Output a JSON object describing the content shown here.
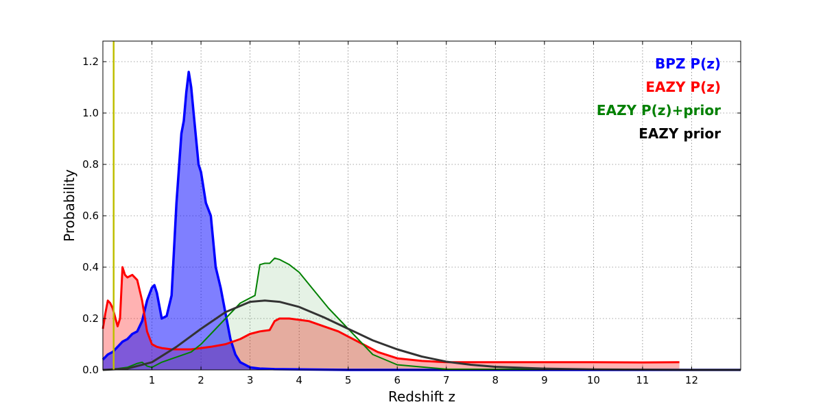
{
  "chart_data": {
    "type": "area",
    "title": "",
    "xlabel": "Redshift z",
    "ylabel": "Probability",
    "xlim": [
      0,
      13
    ],
    "ylim": [
      0,
      1.28
    ],
    "grid": true,
    "legend_placement": "top-right",
    "x_ticks": [
      1,
      2,
      3,
      4,
      5,
      6,
      7,
      8,
      9,
      10,
      11,
      12
    ],
    "x_tick_labels": [
      "1",
      "2",
      "3",
      "4",
      "5",
      "6",
      "7",
      "8",
      "9",
      "10",
      "11",
      "12"
    ],
    "y_ticks": [
      0.0,
      0.2,
      0.4,
      0.6,
      0.8,
      1.0,
      1.2
    ],
    "y_tick_labels": [
      "0.0",
      "0.2",
      "0.4",
      "0.6",
      "0.8",
      "1.0",
      "1.2"
    ],
    "vline": {
      "x": 0.22,
      "color": "#bfbf00"
    },
    "series": [
      {
        "name": "BPZ P(z)",
        "color": "#0000ff",
        "fill": "#0000ff",
        "fill_opacity": 0.5,
        "x": [
          0,
          0.1,
          0.2,
          0.3,
          0.4,
          0.5,
          0.6,
          0.7,
          0.8,
          0.9,
          1.0,
          1.05,
          1.1,
          1.15,
          1.2,
          1.3,
          1.4,
          1.5,
          1.6,
          1.65,
          1.7,
          1.75,
          1.8,
          1.85,
          1.9,
          1.95,
          2.0,
          2.1,
          2.2,
          2.3,
          2.4,
          2.5,
          2.6,
          2.7,
          2.8,
          2.9,
          3.0,
          3.2,
          3.5,
          4.0,
          5.0,
          13.0
        ],
        "y": [
          0.04,
          0.06,
          0.07,
          0.09,
          0.11,
          0.12,
          0.14,
          0.15,
          0.19,
          0.27,
          0.32,
          0.33,
          0.3,
          0.25,
          0.2,
          0.21,
          0.29,
          0.65,
          0.92,
          0.97,
          1.08,
          1.16,
          1.1,
          1.0,
          0.9,
          0.8,
          0.77,
          0.65,
          0.6,
          0.4,
          0.32,
          0.22,
          0.12,
          0.06,
          0.03,
          0.02,
          0.01,
          0.005,
          0.003,
          0.002,
          0.0,
          0.0
        ]
      },
      {
        "name": "EAZY P(z)",
        "color": "#ff0000",
        "fill": "#ff0000",
        "fill_opacity": 0.3,
        "x": [
          0,
          0.05,
          0.1,
          0.15,
          0.2,
          0.3,
          0.35,
          0.4,
          0.45,
          0.5,
          0.6,
          0.7,
          0.8,
          0.9,
          1.0,
          1.1,
          1.2,
          1.4,
          1.6,
          1.8,
          2.0,
          2.2,
          2.5,
          2.8,
          3.0,
          3.2,
          3.4,
          3.5,
          3.6,
          3.8,
          4.0,
          4.2,
          4.5,
          4.8,
          5.0,
          5.3,
          5.6,
          6.0,
          6.5,
          7.0,
          8.0,
          9.0,
          10.0,
          11.0,
          11.75
        ],
        "y": [
          0.16,
          0.22,
          0.27,
          0.26,
          0.24,
          0.17,
          0.2,
          0.4,
          0.37,
          0.36,
          0.37,
          0.35,
          0.27,
          0.15,
          0.1,
          0.09,
          0.085,
          0.08,
          0.08,
          0.08,
          0.085,
          0.09,
          0.1,
          0.12,
          0.14,
          0.15,
          0.155,
          0.19,
          0.2,
          0.2,
          0.195,
          0.19,
          0.17,
          0.15,
          0.13,
          0.1,
          0.07,
          0.045,
          0.035,
          0.03,
          0.03,
          0.03,
          0.03,
          0.029,
          0.03
        ]
      },
      {
        "name": "EAZY P(z)+prior",
        "color": "#008000",
        "fill": "#008000",
        "fill_opacity": 0.1,
        "x": [
          0,
          0.3,
          0.5,
          0.7,
          0.8,
          0.9,
          1.0,
          1.2,
          1.5,
          1.8,
          2.0,
          2.2,
          2.5,
          2.8,
          3.0,
          3.1,
          3.2,
          3.3,
          3.4,
          3.5,
          3.6,
          3.8,
          4.0,
          4.3,
          4.6,
          5.0,
          5.5,
          6.0,
          7.0,
          13.0
        ],
        "y": [
          0.0,
          0.005,
          0.01,
          0.025,
          0.03,
          0.015,
          0.01,
          0.03,
          0.05,
          0.07,
          0.1,
          0.14,
          0.2,
          0.26,
          0.28,
          0.29,
          0.41,
          0.415,
          0.415,
          0.435,
          0.43,
          0.41,
          0.38,
          0.31,
          0.24,
          0.16,
          0.06,
          0.02,
          0.003,
          0.0
        ]
      },
      {
        "name": "EAZY prior",
        "color": "#333333",
        "fill": "none",
        "fill_opacity": 0,
        "x": [
          0,
          0.5,
          1.0,
          1.5,
          2.0,
          2.5,
          3.0,
          3.3,
          3.6,
          4.0,
          4.5,
          5.0,
          5.5,
          6.0,
          6.5,
          7.0,
          7.5,
          8.0,
          9.0,
          10.0,
          11.0,
          12.0,
          13.0
        ],
        "y": [
          0.0,
          0.005,
          0.03,
          0.09,
          0.16,
          0.225,
          0.265,
          0.27,
          0.265,
          0.245,
          0.205,
          0.16,
          0.115,
          0.08,
          0.052,
          0.032,
          0.02,
          0.012,
          0.005,
          0.002,
          0.001,
          0.0,
          0.0
        ]
      }
    ]
  }
}
